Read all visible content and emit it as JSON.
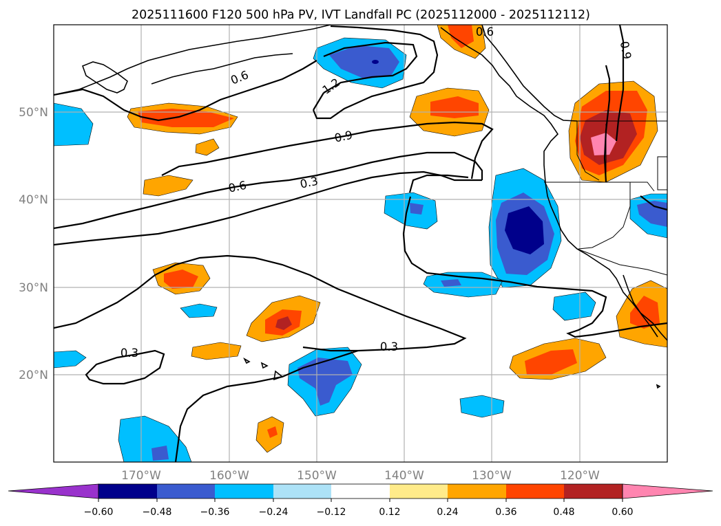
{
  "title": "2025111600 F120 500 hPa PV, IVT Landfall PC (2025112000 - 2025112112)",
  "map": {
    "lon_range": [
      -180,
      -110
    ],
    "lat_range": [
      10,
      60
    ],
    "lon_ticks": [
      {
        "value": -170,
        "label": "170°W"
      },
      {
        "value": -160,
        "label": "160°W"
      },
      {
        "value": -150,
        "label": "150°W"
      },
      {
        "value": -140,
        "label": "140°W"
      },
      {
        "value": -130,
        "label": "130°W"
      },
      {
        "value": -120,
        "label": "120°W"
      }
    ],
    "lat_ticks": [
      {
        "value": 20,
        "label": "20°N"
      },
      {
        "value": 30,
        "label": "30°N"
      },
      {
        "value": 40,
        "label": "40°N"
      },
      {
        "value": 50,
        "label": "50°N"
      }
    ],
    "contour_labels": [
      "0.6",
      "1.2",
      "0.9",
      "0.6",
      "0.3",
      "0.3",
      "0.3",
      "0.6",
      "0.9"
    ]
  },
  "colorbar": {
    "ticks": [
      "−0.60",
      "−0.48",
      "−0.36",
      "−0.24",
      "−0.12",
      "0.12",
      "0.24",
      "0.36",
      "0.48",
      "0.60"
    ],
    "colors": [
      "#9932cc",
      "#00008b",
      "#3a5bcf",
      "#00bfff",
      "#ade2f7",
      "#ffffff",
      "#ffeb8a",
      "#ffa500",
      "#ff4500",
      "#b22222",
      "#ff85b0"
    ]
  }
}
